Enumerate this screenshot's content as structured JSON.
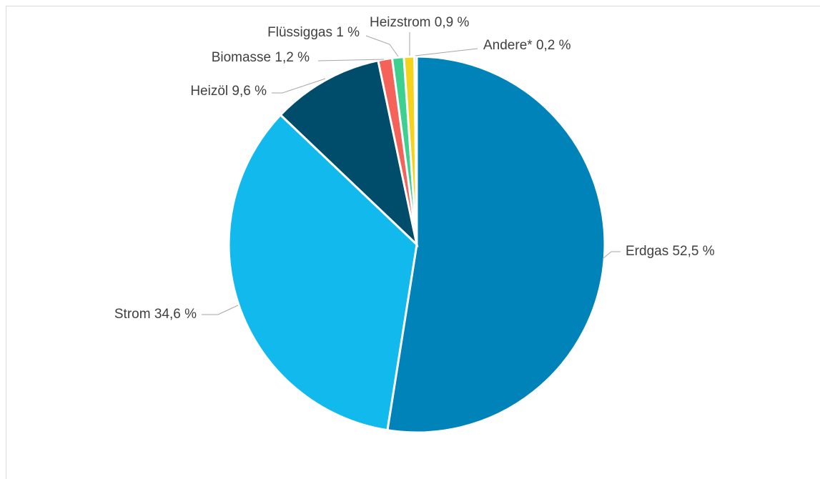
{
  "chart_data": {
    "type": "pie",
    "categories": [
      "Erdgas",
      "Strom",
      "Heizöl",
      "Biomasse",
      "Flüssiggas",
      "Heizstrom",
      "Andere*"
    ],
    "values": [
      52.5,
      34.6,
      9.6,
      1.2,
      1,
      0.9,
      0.2
    ],
    "value_labels": [
      "52,5 %",
      "34,6 %",
      "9,6 %",
      "1,2 %",
      "1 %",
      "0,9 %",
      "0,2 %"
    ],
    "colors": [
      "#0083b8",
      "#12b9ec",
      "#004d6b",
      "#f4625a",
      "#3fcf8e",
      "#f5d31c",
      "#7ea6d8"
    ]
  }
}
